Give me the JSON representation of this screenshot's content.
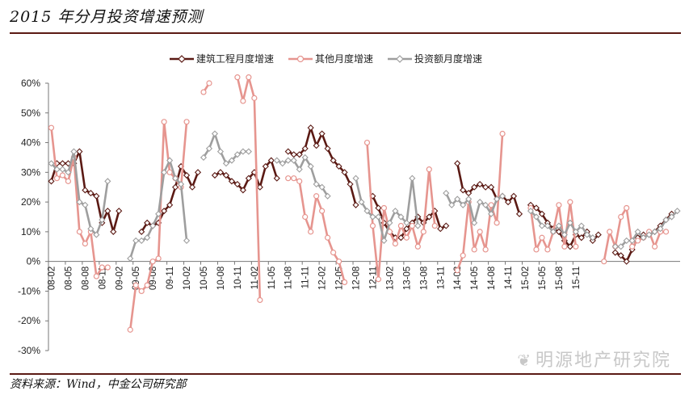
{
  "title": "2015 年分月投资增速预测",
  "source": "资料来源：Wind，中金公司研究部",
  "watermark": "明源地产研究院",
  "chart_data": {
    "type": "line",
    "legend_placement": "top",
    "grid": false,
    "ylim": [
      -30,
      60
    ],
    "yticks": [
      "60%",
      "50%",
      "40%",
      "30%",
      "20%",
      "10%",
      "0%",
      "-10%",
      "-20%",
      "-30%"
    ],
    "xtick_labels": [
      "08-02",
      "08-05",
      "08-08",
      "08-11",
      "09-02",
      "09-05",
      "09-08",
      "09-11",
      "10-02",
      "10-05",
      "10-08",
      "10-11",
      "11-02",
      "11-05",
      "11-08",
      "11-11",
      "12-02",
      "12-05",
      "12-08",
      "12-11",
      "13-02",
      "13-05",
      "13-08",
      "13-11",
      "14-02",
      "14-05",
      "14-08",
      "14-11",
      "15-02",
      "15-05",
      "15-08",
      "15-11"
    ],
    "x_start": "2008-02",
    "series": [
      {
        "name": "建筑工程月度增速",
        "color": "#5b1a14",
        "values": [
          27,
          33,
          33,
          33,
          33,
          37,
          24,
          23,
          22,
          13,
          17,
          10,
          17,
          null,
          null,
          null,
          10,
          13,
          12,
          13,
          17,
          19,
          25,
          32,
          29,
          25,
          30,
          null,
          null,
          29,
          30,
          29,
          27,
          26,
          24,
          28,
          30,
          25,
          32,
          34,
          28,
          null,
          37,
          36,
          36,
          38,
          45,
          39,
          43,
          38,
          34,
          32,
          30,
          26,
          19,
          null,
          null,
          22,
          18,
          13,
          10,
          8,
          8,
          11,
          13,
          15,
          13,
          15,
          17,
          11,
          12,
          null,
          33,
          24,
          23,
          25,
          26,
          25,
          25,
          21,
          22,
          20,
          22,
          16,
          null,
          19,
          18,
          16,
          13,
          11,
          10,
          7,
          5,
          9,
          8,
          10,
          7,
          9,
          null,
          null,
          3,
          2,
          0,
          4,
          8,
          9,
          9,
          10,
          12,
          14,
          16
        ]
      },
      {
        "name": "其他月度增速",
        "color": "#e6958f",
        "values": [
          45,
          28,
          29,
          27,
          35,
          10,
          6,
          10,
          -5,
          -2,
          -2,
          null,
          null,
          null,
          -23,
          -8,
          -10,
          -8,
          0,
          1,
          47,
          30,
          28,
          25,
          47,
          null,
          null,
          57,
          60,
          null,
          null,
          null,
          null,
          62,
          54,
          62,
          55,
          -13,
          null,
          null,
          null,
          null,
          28,
          28,
          27,
          15,
          10,
          22,
          17,
          8,
          3,
          0,
          -7,
          null,
          null,
          null,
          40,
          12,
          -6,
          18,
          10,
          6,
          12,
          8,
          12,
          5,
          10,
          31,
          12,
          null,
          null,
          null,
          -3,
          2,
          20,
          4,
          10,
          4,
          19,
          13,
          43,
          null,
          null,
          null,
          null,
          18,
          4,
          8,
          4,
          10,
          19,
          5,
          20,
          5,
          null,
          null,
          null,
          null,
          0,
          10,
          5,
          15,
          18,
          5,
          7,
          8,
          10,
          5,
          10,
          10
        ]
      },
      {
        "name": "投资额月度增速",
        "color": "#9e9e9e",
        "values": [
          33,
          31,
          31,
          30,
          37,
          20,
          19,
          11,
          9,
          14,
          27,
          null,
          null,
          null,
          1,
          7,
          7,
          8,
          12,
          16,
          30,
          34,
          28,
          26,
          7,
          null,
          null,
          35,
          38,
          43,
          37,
          33,
          34,
          36,
          37,
          37,
          null,
          null,
          null,
          null,
          34,
          33,
          34,
          34,
          31,
          35,
          32,
          26,
          25,
          22,
          null,
          null,
          null,
          null,
          28,
          20,
          17,
          15,
          15,
          7,
          13,
          17,
          15,
          13,
          28,
          12,
          null,
          null,
          null,
          null,
          23,
          19,
          21,
          19,
          21,
          13,
          20,
          19,
          16,
          21,
          22,
          null,
          null,
          null,
          null,
          17,
          15,
          12,
          12,
          10,
          12,
          9,
          13,
          10,
          12,
          9,
          8,
          null,
          null,
          null,
          5,
          5,
          7,
          7,
          10,
          8,
          9,
          10,
          11,
          14,
          15,
          17
        ]
      }
    ]
  }
}
